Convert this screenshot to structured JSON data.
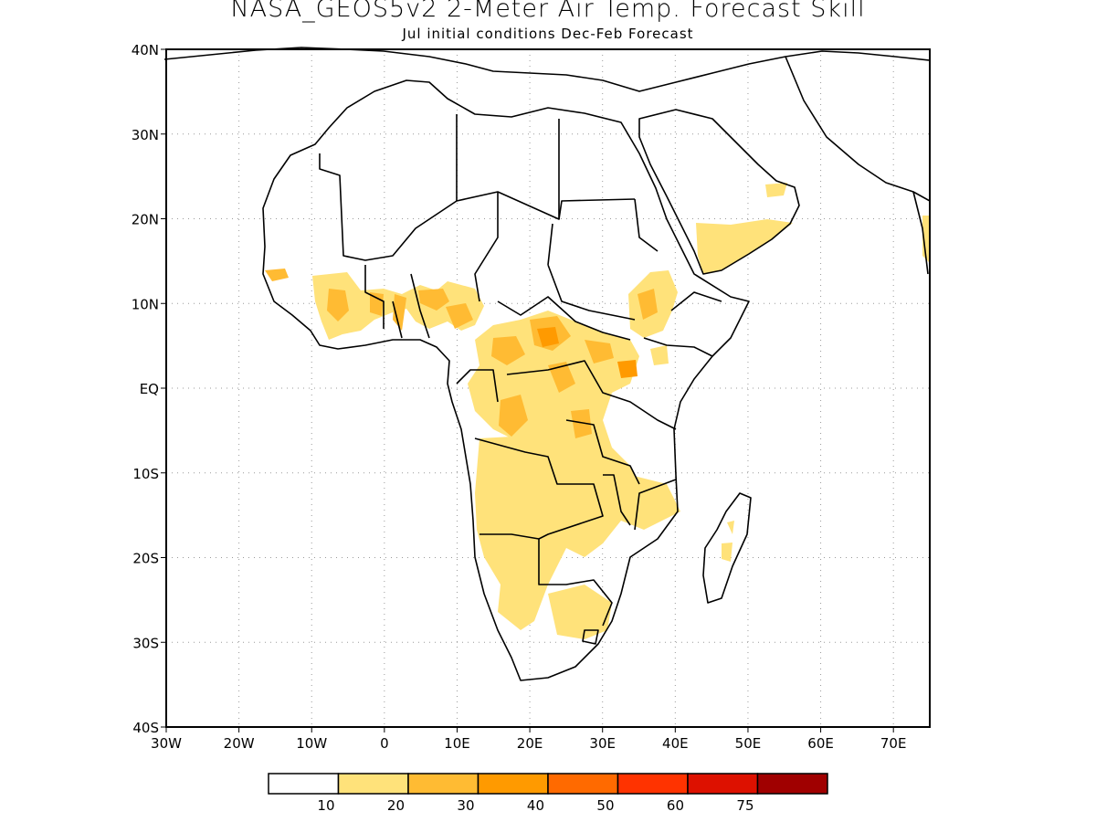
{
  "title": "NASA_GEOS5v2 2-Meter Air Temp. Forecast Skill",
  "subtitle": "Jul initial conditions  Dec-Feb Forecast",
  "axes": {
    "lat_labels": [
      "40N",
      "30N",
      "20N",
      "10N",
      "EQ",
      "10S",
      "20S",
      "30S",
      "40S"
    ],
    "lon_labels": [
      "30W",
      "20W",
      "10W",
      "0",
      "10E",
      "20E",
      "30E",
      "40E",
      "50E",
      "60E",
      "70E"
    ],
    "lat_range": [
      -40,
      40
    ],
    "lon_range": [
      -30,
      75
    ],
    "grid": "dotted"
  },
  "colorbar": {
    "levels": [
      "10",
      "20",
      "30",
      "40",
      "50",
      "60",
      "75"
    ],
    "colors": [
      "#ffffff",
      "#ffe27a",
      "#ffbb33",
      "#ff9a00",
      "#ff6a00",
      "#ff3300",
      "#dd1100",
      "#a00000"
    ]
  },
  "map_colors": {
    "coast": "#000000",
    "level1": "#ffe27a",
    "level2": "#ffbb33",
    "level3": "#ff9a00",
    "level4": "#ff6a00"
  }
}
